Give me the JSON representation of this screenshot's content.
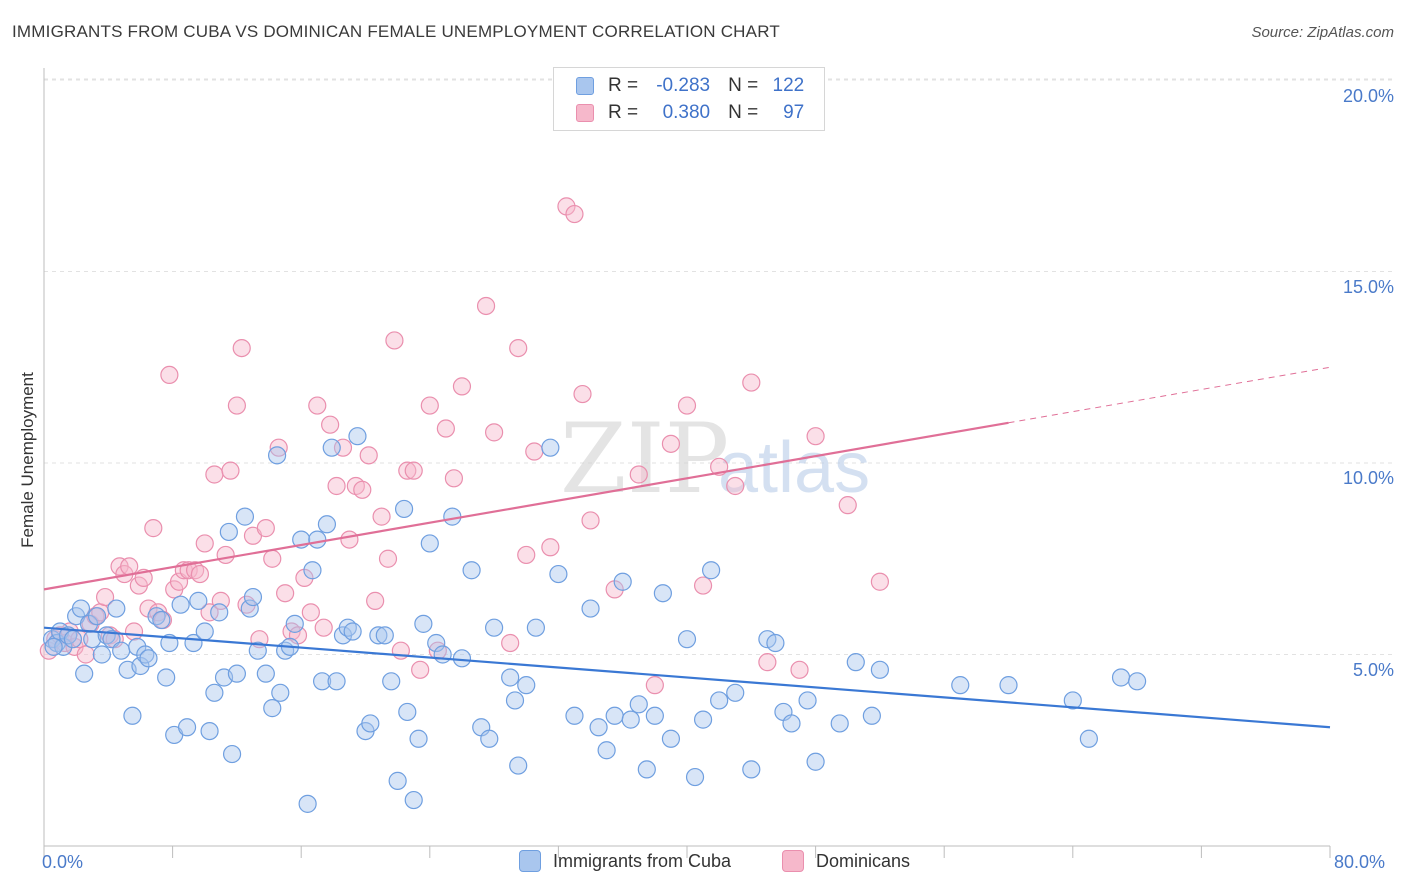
{
  "header": {
    "title": "IMMIGRANTS FROM CUBA VS DOMINICAN FEMALE UNEMPLOYMENT CORRELATION CHART",
    "source": "Source: ZipAtlas.com"
  },
  "watermark": {
    "zip": "ZIP",
    "atlas": "atlas"
  },
  "legend_top": {
    "rows": [
      {
        "r_label": "R =",
        "r_value": "-0.283",
        "n_label": "N =",
        "n_value": "122"
      },
      {
        "r_label": "R =",
        "r_value": "0.380",
        "n_label": "N =",
        "n_value": "97"
      }
    ]
  },
  "colors": {
    "cuba_fill": "#a9c6ee",
    "cuba_stroke": "#6f9fe0",
    "cuba_line": "#3a78d4",
    "dom_fill": "#f6b8cb",
    "dom_stroke": "#ea8fae",
    "dom_line": "#e06f97",
    "grid": "#e2e2e2",
    "axis_text": "#4a7ac9"
  },
  "chart_data": {
    "type": "scatter",
    "title": "IMMIGRANTS FROM CUBA VS DOMINICAN FEMALE UNEMPLOYMENT CORRELATION CHART",
    "xlabel": "",
    "ylabel": "Female Unemployment",
    "xlim": [
      0,
      80
    ],
    "ylim": [
      0,
      20.5
    ],
    "x_tick_labels": [
      "0.0%",
      "80.0%"
    ],
    "y_ticks": [
      5,
      10,
      15,
      20
    ],
    "y_tick_labels": [
      "5.0%",
      "10.0%",
      "15.0%",
      "20.0%"
    ],
    "grid": "horizontal dashed",
    "legend": "bottom-center",
    "series": [
      {
        "name": "Immigrants from Cuba",
        "r": -0.283,
        "n": 122,
        "trend": {
          "x": [
            0,
            80
          ],
          "y": [
            5.7,
            3.1
          ],
          "dashed_from": null
        },
        "points": [
          [
            0.5,
            5.4
          ],
          [
            0.8,
            5.3
          ],
          [
            1.0,
            5.6
          ],
          [
            1.2,
            5.2
          ],
          [
            1.5,
            5.5
          ],
          [
            1.8,
            5.4
          ],
          [
            2.0,
            6.0
          ],
          [
            2.3,
            6.2
          ],
          [
            2.5,
            4.5
          ],
          [
            2.8,
            5.8
          ],
          [
            3.0,
            5.4
          ],
          [
            3.3,
            6.0
          ],
          [
            3.6,
            5.0
          ],
          [
            3.9,
            5.5
          ],
          [
            4.2,
            5.4
          ],
          [
            4.5,
            6.2
          ],
          [
            4.8,
            5.1
          ],
          [
            5.2,
            4.6
          ],
          [
            5.5,
            3.4
          ],
          [
            5.8,
            5.2
          ],
          [
            6.0,
            4.7
          ],
          [
            6.3,
            5.0
          ],
          [
            6.5,
            4.9
          ],
          [
            7.0,
            6.0
          ],
          [
            7.3,
            5.9
          ],
          [
            7.6,
            4.4
          ],
          [
            7.8,
            5.3
          ],
          [
            8.1,
            2.9
          ],
          [
            8.5,
            6.3
          ],
          [
            8.9,
            3.1
          ],
          [
            9.3,
            5.3
          ],
          [
            9.6,
            6.4
          ],
          [
            10.0,
            5.6
          ],
          [
            10.3,
            3.0
          ],
          [
            10.6,
            4.0
          ],
          [
            10.9,
            6.1
          ],
          [
            11.2,
            4.4
          ],
          [
            11.5,
            8.2
          ],
          [
            11.7,
            2.4
          ],
          [
            12.0,
            4.5
          ],
          [
            12.5,
            8.6
          ],
          [
            12.8,
            6.2
          ],
          [
            13.0,
            6.5
          ],
          [
            13.3,
            5.1
          ],
          [
            13.8,
            4.5
          ],
          [
            14.2,
            3.6
          ],
          [
            14.5,
            10.2
          ],
          [
            14.7,
            4.0
          ],
          [
            15.0,
            5.1
          ],
          [
            15.3,
            5.2
          ],
          [
            15.6,
            5.8
          ],
          [
            16.0,
            8.0
          ],
          [
            16.4,
            1.1
          ],
          [
            16.7,
            7.2
          ],
          [
            17.0,
            8.0
          ],
          [
            17.3,
            4.3
          ],
          [
            17.6,
            8.4
          ],
          [
            17.9,
            10.4
          ],
          [
            18.2,
            4.3
          ],
          [
            18.6,
            5.5
          ],
          [
            18.9,
            5.7
          ],
          [
            19.2,
            5.6
          ],
          [
            19.5,
            10.7
          ],
          [
            20.0,
            3.0
          ],
          [
            20.3,
            3.2
          ],
          [
            20.8,
            5.5
          ],
          [
            21.2,
            5.5
          ],
          [
            21.6,
            4.3
          ],
          [
            22.0,
            1.7
          ],
          [
            22.4,
            8.8
          ],
          [
            22.6,
            3.5
          ],
          [
            23.0,
            1.2
          ],
          [
            23.3,
            2.8
          ],
          [
            23.6,
            5.8
          ],
          [
            24.0,
            7.9
          ],
          [
            24.4,
            5.3
          ],
          [
            24.8,
            5.0
          ],
          [
            25.4,
            8.6
          ],
          [
            26.0,
            4.9
          ],
          [
            26.6,
            7.2
          ],
          [
            27.2,
            3.1
          ],
          [
            27.7,
            2.8
          ],
          [
            28.0,
            5.7
          ],
          [
            29.0,
            4.4
          ],
          [
            29.3,
            3.8
          ],
          [
            29.5,
            2.1
          ],
          [
            30.0,
            4.2
          ],
          [
            30.6,
            5.7
          ],
          [
            31.5,
            10.4
          ],
          [
            32.0,
            7.1
          ],
          [
            33.0,
            3.4
          ],
          [
            34.0,
            6.2
          ],
          [
            34.5,
            3.1
          ],
          [
            35.0,
            2.5
          ],
          [
            35.5,
            3.4
          ],
          [
            36.0,
            6.9
          ],
          [
            36.5,
            3.3
          ],
          [
            37.0,
            3.7
          ],
          [
            37.5,
            2.0
          ],
          [
            38.0,
            3.4
          ],
          [
            38.5,
            6.6
          ],
          [
            39.0,
            2.8
          ],
          [
            40.0,
            5.4
          ],
          [
            40.5,
            1.8
          ],
          [
            41.0,
            3.3
          ],
          [
            41.5,
            7.2
          ],
          [
            42.0,
            3.8
          ],
          [
            43.0,
            4.0
          ],
          [
            44.0,
            2.0
          ],
          [
            45.0,
            5.4
          ],
          [
            45.5,
            5.3
          ],
          [
            46.0,
            3.5
          ],
          [
            46.5,
            3.2
          ],
          [
            47.5,
            3.8
          ],
          [
            48.0,
            2.2
          ],
          [
            49.5,
            3.2
          ],
          [
            50.5,
            4.8
          ],
          [
            51.5,
            3.4
          ],
          [
            52.0,
            4.6
          ],
          [
            57.0,
            4.2
          ],
          [
            60.0,
            4.2
          ],
          [
            64.0,
            3.8
          ],
          [
            65.0,
            2.8
          ],
          [
            67.0,
            4.4
          ],
          [
            68.0,
            4.3
          ],
          [
            0.6,
            5.2
          ]
        ]
      },
      {
        "name": "Dominicans",
        "r": 0.38,
        "n": 97,
        "trend": {
          "x": [
            0,
            80
          ],
          "y": [
            6.7,
            12.5
          ],
          "dashed_from": 60
        },
        "points": [
          [
            0.3,
            5.1
          ],
          [
            0.7,
            5.4
          ],
          [
            1.0,
            5.5
          ],
          [
            1.3,
            5.3
          ],
          [
            1.6,
            5.6
          ],
          [
            1.9,
            5.2
          ],
          [
            2.2,
            5.4
          ],
          [
            2.6,
            5.0
          ],
          [
            2.9,
            5.8
          ],
          [
            3.2,
            6.0
          ],
          [
            3.5,
            6.1
          ],
          [
            3.8,
            6.5
          ],
          [
            4.1,
            5.5
          ],
          [
            4.4,
            5.4
          ],
          [
            4.7,
            7.3
          ],
          [
            5.0,
            7.1
          ],
          [
            5.3,
            7.3
          ],
          [
            5.6,
            5.6
          ],
          [
            5.9,
            6.8
          ],
          [
            6.2,
            7.0
          ],
          [
            6.5,
            6.2
          ],
          [
            6.8,
            8.3
          ],
          [
            7.1,
            6.1
          ],
          [
            7.4,
            5.9
          ],
          [
            7.8,
            12.3
          ],
          [
            8.1,
            6.7
          ],
          [
            8.4,
            6.9
          ],
          [
            8.7,
            7.2
          ],
          [
            9.0,
            7.2
          ],
          [
            9.4,
            7.2
          ],
          [
            9.7,
            7.1
          ],
          [
            10.0,
            7.9
          ],
          [
            10.3,
            6.1
          ],
          [
            10.6,
            9.7
          ],
          [
            11.0,
            6.4
          ],
          [
            11.3,
            7.6
          ],
          [
            11.6,
            9.8
          ],
          [
            12.0,
            11.5
          ],
          [
            12.3,
            13.0
          ],
          [
            12.6,
            6.3
          ],
          [
            13.0,
            8.1
          ],
          [
            13.4,
            5.4
          ],
          [
            13.8,
            8.3
          ],
          [
            14.2,
            7.5
          ],
          [
            14.6,
            10.4
          ],
          [
            15.0,
            6.6
          ],
          [
            15.4,
            5.6
          ],
          [
            15.8,
            5.5
          ],
          [
            16.2,
            7.0
          ],
          [
            16.6,
            6.1
          ],
          [
            17.0,
            11.5
          ],
          [
            17.4,
            5.7
          ],
          [
            17.8,
            11.0
          ],
          [
            18.2,
            9.4
          ],
          [
            18.6,
            10.4
          ],
          [
            19.0,
            8.0
          ],
          [
            19.4,
            9.4
          ],
          [
            19.8,
            9.3
          ],
          [
            20.2,
            10.2
          ],
          [
            20.6,
            6.4
          ],
          [
            21.0,
            8.6
          ],
          [
            21.4,
            7.5
          ],
          [
            21.8,
            13.2
          ],
          [
            22.2,
            5.1
          ],
          [
            22.6,
            9.8
          ],
          [
            23.0,
            9.8
          ],
          [
            23.4,
            4.6
          ],
          [
            24.0,
            11.5
          ],
          [
            24.5,
            5.1
          ],
          [
            25.0,
            10.9
          ],
          [
            25.5,
            9.6
          ],
          [
            26.0,
            12.0
          ],
          [
            27.5,
            14.1
          ],
          [
            28.0,
            10.8
          ],
          [
            29.0,
            5.3
          ],
          [
            29.5,
            13.0
          ],
          [
            30.0,
            7.6
          ],
          [
            30.5,
            10.3
          ],
          [
            31.5,
            7.8
          ],
          [
            32.5,
            16.7
          ],
          [
            33.0,
            16.5
          ],
          [
            33.5,
            11.8
          ],
          [
            34.0,
            8.5
          ],
          [
            35.5,
            6.7
          ],
          [
            37.0,
            9.7
          ],
          [
            38.0,
            4.2
          ],
          [
            39.0,
            10.5
          ],
          [
            40.0,
            11.5
          ],
          [
            41.0,
            6.8
          ],
          [
            42.0,
            9.9
          ],
          [
            43.0,
            9.4
          ],
          [
            44.0,
            12.1
          ],
          [
            45.0,
            4.8
          ],
          [
            47.0,
            4.6
          ],
          [
            48.0,
            10.7
          ],
          [
            50.0,
            8.9
          ],
          [
            52.0,
            6.9
          ]
        ]
      }
    ]
  },
  "axes": {
    "y_ticks": [
      "5.0%",
      "10.0%",
      "15.0%",
      "20.0%"
    ],
    "x_ticks": [
      "0.0%",
      "80.0%"
    ],
    "ylabel": "Female Unemployment"
  },
  "legend_bottom": {
    "items": [
      {
        "label": "Immigrants from Cuba"
      },
      {
        "label": "Dominicans"
      }
    ]
  }
}
